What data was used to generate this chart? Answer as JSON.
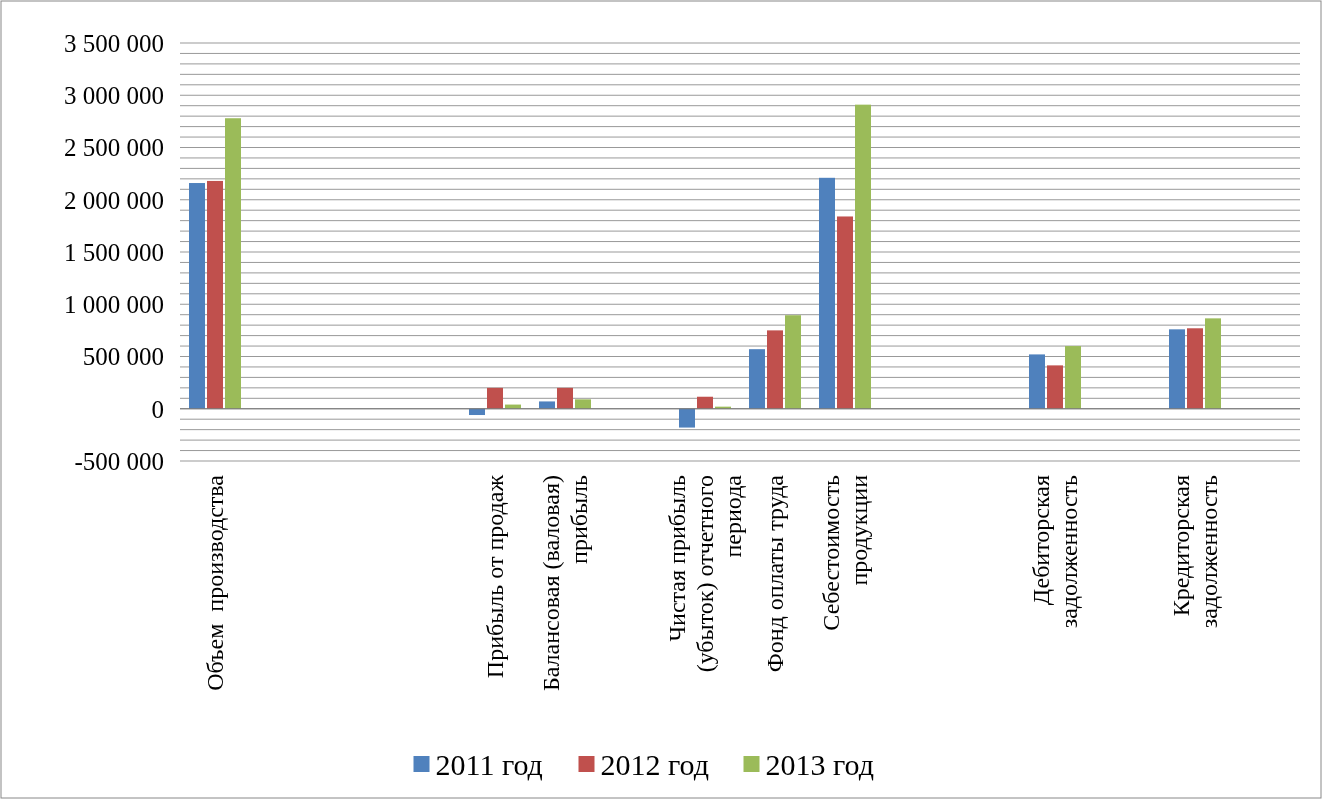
{
  "chart_data": {
    "type": "bar",
    "categories": [
      "Объем  производства",
      null,
      null,
      null,
      "Прибыль от продаж",
      "Балансовая (валовая) прибыль",
      null,
      "Чистая прибыль (убыток) отчетного периода",
      "Фонд оплаты труда",
      "Себестоимость продукции",
      null,
      null,
      "Дебиторская задолженность",
      null,
      "Кредиторская задолженность",
      null
    ],
    "series": [
      {
        "name": "2011 год",
        "color": "#4f81bd",
        "values": [
          2160000,
          null,
          null,
          null,
          -60000,
          70000,
          null,
          -180000,
          570000,
          2210000,
          null,
          null,
          520000,
          null,
          760000,
          null
        ]
      },
      {
        "name": "2012 год",
        "color": "#c0504d",
        "values": [
          2180000,
          null,
          null,
          null,
          200000,
          200000,
          null,
          115000,
          750000,
          1840000,
          null,
          null,
          415000,
          null,
          770000,
          null
        ]
      },
      {
        "name": "2013 год",
        "color": "#9bbb59",
        "values": [
          2780000,
          null,
          null,
          null,
          40000,
          90000,
          null,
          20000,
          895000,
          2910000,
          null,
          null,
          600000,
          null,
          865000,
          null
        ]
      }
    ],
    "ylim": [
      -500000,
      3500000
    ],
    "yticks": [
      {
        "value": -500000,
        "label": "-500 000"
      },
      {
        "value": -400000,
        "label": null
      },
      {
        "value": -300000,
        "label": null
      },
      {
        "value": -200000,
        "label": null
      },
      {
        "value": -100000,
        "label": null
      },
      0,
      {
        "value": 100000,
        "label": null
      },
      {
        "value": 200000,
        "label": null
      },
      {
        "value": 300000,
        "label": null
      },
      {
        "value": 400000,
        "label": null
      },
      {
        "value": 500000,
        "label": "500 000"
      },
      {
        "value": 600000,
        "label": null
      },
      {
        "value": 700000,
        "label": null
      },
      {
        "value": 800000,
        "label": null
      },
      {
        "value": 900000,
        "label": null
      },
      {
        "value": 1000000,
        "label": "1 000 000"
      },
      {
        "value": 1100000,
        "label": null
      },
      {
        "value": 1200000,
        "label": null
      },
      {
        "value": 1300000,
        "label": null
      },
      {
        "value": 1400000,
        "label": null
      },
      {
        "value": 1500000,
        "label": "1 500 000"
      },
      {
        "value": 1600000,
        "label": null
      },
      {
        "value": 1700000,
        "label": null
      },
      {
        "value": 1800000,
        "label": null
      },
      {
        "value": 1900000,
        "label": null
      },
      {
        "value": 2000000,
        "label": "2 000 000"
      },
      {
        "value": 2100000,
        "label": null
      },
      {
        "value": 2200000,
        "label": null
      },
      {
        "value": 2300000,
        "label": null
      },
      {
        "value": 2400000,
        "label": null
      },
      {
        "value": 2500000,
        "label": "2 500 000"
      },
      {
        "value": 2600000,
        "label": null
      },
      {
        "value": 2700000,
        "label": null
      },
      {
        "value": 2800000,
        "label": null
      },
      {
        "value": 2900000,
        "label": null
      },
      {
        "value": 3000000,
        "label": "3 000 000"
      },
      {
        "value": 3100000,
        "label": null
      },
      {
        "value": 3200000,
        "label": null
      },
      {
        "value": 3300000,
        "label": null
      },
      {
        "value": 3400000,
        "label": null
      },
      {
        "value": 3500000,
        "label": "3 500 000"
      }
    ],
    "grid": "y",
    "legend": "bottom"
  }
}
